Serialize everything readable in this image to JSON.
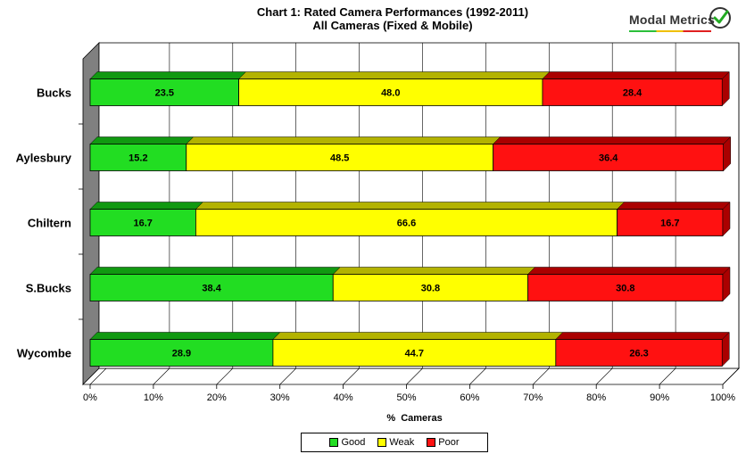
{
  "header": {
    "title_line1": "Chart 1: Rated Camera Performances (1992-2011)",
    "title_line2": "All Cameras (Fixed & Mobile)",
    "logo_text": "Modal Metrics",
    "logo_icon": "check-gauge-icon"
  },
  "colors": {
    "good": "#22dd22",
    "good_dark": "#119911",
    "weak": "#ffff00",
    "weak_dark": "#b3b300",
    "poor": "#ff1111",
    "poor_dark": "#aa0000",
    "wall": "#808080"
  },
  "chart_data": {
    "type": "bar",
    "orientation": "horizontal",
    "stacked": true,
    "percent": true,
    "title": "Chart 1: Rated Camera Performances (1992-2011)",
    "subtitle": "All Cameras (Fixed & Mobile)",
    "xlabel": "%  Cameras",
    "ylabel": "",
    "xlim": [
      0,
      100
    ],
    "x_ticks": [
      "0%",
      "10%",
      "20%",
      "30%",
      "40%",
      "50%",
      "60%",
      "70%",
      "80%",
      "90%",
      "100%"
    ],
    "categories": [
      "Bucks",
      "Aylesbury",
      "Chiltern",
      "S.Bucks",
      "Wycombe"
    ],
    "series": [
      {
        "name": "Good",
        "color": "#22dd22",
        "values": [
          23.5,
          15.2,
          16.7,
          38.4,
          28.9
        ],
        "labels": [
          "23.5",
          "15.2",
          "16.7",
          "38.4",
          "28.9"
        ]
      },
      {
        "name": "Weak",
        "color": "#ffff00",
        "values": [
          48.0,
          48.5,
          66.6,
          30.8,
          44.7
        ],
        "labels": [
          "48.0",
          "48.5",
          "66.6",
          "30.8",
          "44.7"
        ]
      },
      {
        "name": "Poor",
        "color": "#ff1111",
        "values": [
          28.4,
          36.4,
          16.7,
          30.8,
          26.3
        ],
        "labels": [
          "28.4",
          "36.4",
          "16.7",
          "30.8",
          "26.3"
        ]
      }
    ],
    "grid": true,
    "legend_position": "bottom"
  },
  "legend": {
    "items": [
      {
        "label": "Good",
        "color": "#22dd22"
      },
      {
        "label": "Weak",
        "color": "#ffff00"
      },
      {
        "label": "Poor",
        "color": "#ff1111"
      }
    ]
  }
}
